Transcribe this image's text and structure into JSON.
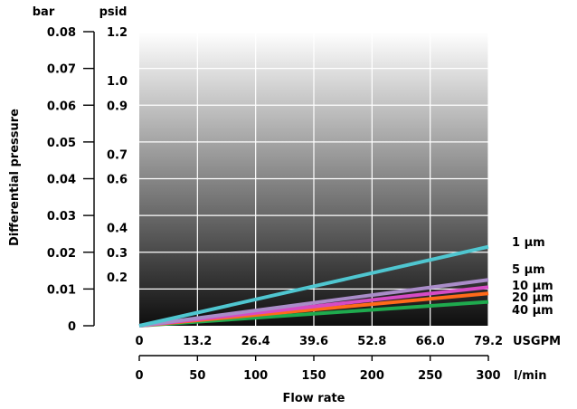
{
  "chart_data": {
    "type": "line",
    "xlabel": "Flow rate",
    "ylabel": "Differential pressure",
    "x_units": {
      "lpm": "l/min",
      "usgpm": "USGPM"
    },
    "y_units": {
      "bar": "bar",
      "psid": "psid"
    },
    "xlim": [
      0,
      300
    ],
    "ylim_bar": [
      0,
      0.08
    ],
    "ylim_psid": [
      0,
      1.2
    ],
    "x_ticks_lpm": [
      "0",
      "50",
      "100",
      "150",
      "200",
      "250",
      "300"
    ],
    "x_ticks_usgpm": [
      "0",
      "13.2",
      "26.4",
      "39.6",
      "52.8",
      "66.0",
      "79.2"
    ],
    "y_ticks_bar": [
      "0",
      "0.01",
      "0.02",
      "0.03",
      "0.04",
      "0.05",
      "0.06",
      "0.07",
      "0.08"
    ],
    "y_ticks_psid": [
      "0.2",
      "0.3",
      "0.4",
      "0.6",
      "0.7",
      "0.9",
      "1.0",
      "1.2"
    ],
    "grid": true,
    "series": [
      {
        "name": "1 µm",
        "color": "#4fc6d0",
        "x": [
          0,
          300
        ],
        "y": [
          0,
          0.0215
        ]
      },
      {
        "name": "5 µm",
        "color": "#a98cc8",
        "x": [
          0,
          300
        ],
        "y": [
          0,
          0.0125
        ]
      },
      {
        "name": "10 µm",
        "color": "#d64bc4",
        "x": [
          0,
          300
        ],
        "y": [
          0,
          0.0105
        ]
      },
      {
        "name": "20 µm",
        "color": "#ff6a1a",
        "x": [
          0,
          300
        ],
        "y": [
          0,
          0.0088
        ]
      },
      {
        "name": "40 µm",
        "color": "#1faa4e",
        "x": [
          0,
          300
        ],
        "y": [
          0,
          0.0065
        ]
      }
    ]
  }
}
